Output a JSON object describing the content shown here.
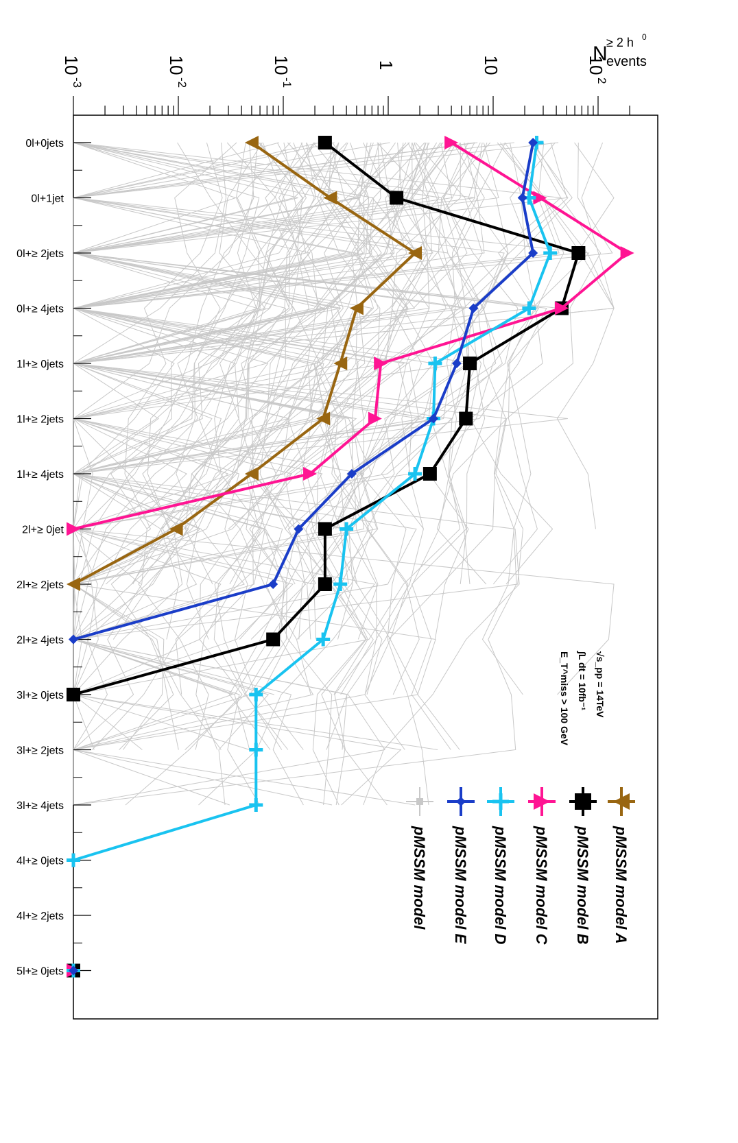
{
  "chart_data": {
    "type": "line",
    "orientation": "rotated-90-cw",
    "yscale": "log",
    "ylim": [
      0.001,
      200
    ],
    "ylabel": "N_events^{≥ 2 h^0}",
    "ylabel_main": "N",
    "ylabel_sup": "≥ 2 h",
    "ylabel_sup2": "0",
    "ylabel_sub": "events",
    "y_tick_labels": [
      {
        "value": 0.001,
        "base": "10",
        "exp": "-3"
      },
      {
        "value": 0.01,
        "base": "10",
        "exp": "-2"
      },
      {
        "value": 0.1,
        "base": "10",
        "exp": "-1"
      },
      {
        "value": 1,
        "base": "1",
        "exp": ""
      },
      {
        "value": 10,
        "base": "10",
        "exp": ""
      },
      {
        "value": 100,
        "base": "10",
        "exp": "2"
      }
    ],
    "categories": [
      "0l+0jets",
      "0l+1jet",
      "0l+≥ 2jets",
      "0l+≥ 4jets",
      "1l+≥ 0jets",
      "1l+≥ 2jets",
      "1l+≥ 4jets",
      "2l+≥ 0jet",
      "2l+≥ 2jets",
      "2l+≥ 4jets",
      "3l+≥ 0jets",
      "3l+≥ 2jets",
      "3l+≥ 4jets",
      "4l+≥ 0jets",
      "4l+≥ 2jets",
      "5l+≥ 0jets"
    ],
    "series": [
      {
        "name": "pMSSM model A",
        "color": "#996611",
        "marker": "triangle",
        "values": [
          0.05,
          0.28,
          1.8,
          0.5,
          0.35,
          0.24,
          0.05,
          0.0095,
          0.001,
          null,
          null,
          null,
          null,
          null,
          null,
          0.001
        ]
      },
      {
        "name": "pMSSM model B",
        "color": "#000000",
        "marker": "square",
        "values": [
          0.25,
          1.2,
          65,
          45,
          6,
          5.5,
          2.5,
          0.25,
          0.25,
          0.08,
          0.001,
          null,
          null,
          null,
          null,
          0.001
        ]
      },
      {
        "name": "pMSSM model C",
        "color": "#ff1493",
        "marker": "triangle-right",
        "values": [
          4,
          28,
          190,
          45,
          0.85,
          0.75,
          0.18,
          0.001,
          null,
          null,
          null,
          null,
          null,
          null,
          null,
          0.001
        ]
      },
      {
        "name": "pMSSM model D",
        "color": "#19c3f0",
        "marker": "cross",
        "values": [
          26,
          22,
          35,
          22,
          2.8,
          2.7,
          1.8,
          0.4,
          0.35,
          0.24,
          0.055,
          0.055,
          0.055,
          0.001,
          null,
          0.001
        ]
      },
      {
        "name": "pMSSM model E",
        "color": "#1a3dc8",
        "marker": "diamond",
        "values": [
          24,
          19,
          24,
          6.5,
          4.5,
          2.7,
          0.45,
          0.14,
          0.08,
          0.001,
          null,
          null,
          null,
          null,
          null,
          0.001
        ]
      }
    ],
    "background_label": "pMSSM model",
    "background_color": "#c8c8c8"
  },
  "annotations": {
    "sqrt_s": "√s_pp = 14TeV",
    "lumi": "∫L dt = 10fb⁻¹",
    "met": "E_T^miss > 100 GeV"
  },
  "legend": [
    {
      "label": "pMSSM model A",
      "color": "#996611",
      "marker": "triangle"
    },
    {
      "label": "pMSSM model B",
      "color": "#000000",
      "marker": "square"
    },
    {
      "label": "pMSSM model C",
      "color": "#ff1493",
      "marker": "triangle-right"
    },
    {
      "label": "pMSSM model D",
      "color": "#19c3f0",
      "marker": "cross"
    },
    {
      "label": "pMSSM model E",
      "color": "#1a3dc8",
      "marker": "diamond"
    },
    {
      "label": "pMSSM model",
      "color": "#c8c8c8",
      "marker": "small-square"
    }
  ]
}
